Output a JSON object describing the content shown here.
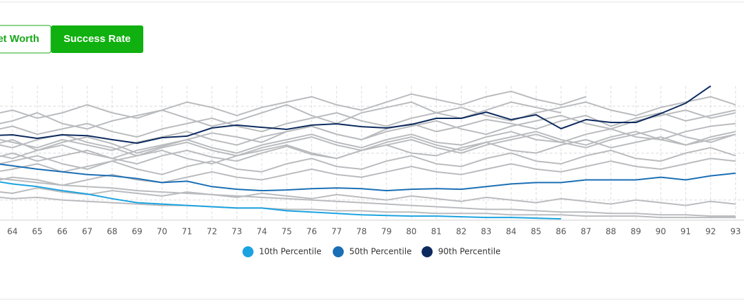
{
  "buttons": [
    "Net Worth",
    "Success Rate"
  ],
  "chart_data": {
    "type": "line",
    "categories": [
      null,
      "64",
      "65",
      "66",
      "67",
      "68",
      "69",
      "70",
      "71",
      "72",
      "73",
      "74",
      "75",
      "76",
      "77",
      "78",
      "79",
      "80",
      "81",
      "82",
      "83",
      "84",
      "85",
      "86",
      "87",
      "88",
      "89",
      "90",
      "91",
      "92",
      "93"
    ],
    "ylim": [
      0,
      100
    ],
    "yticks": [
      15,
      50,
      85
    ],
    "grid": true,
    "legend": "bottom",
    "simulations": {
      "color": "#b9bbbe",
      "values": [
        [
          55,
          60,
          52,
          58,
          62,
          57,
          50,
          55,
          60,
          65,
          62,
          58,
          66,
          70,
          64,
          60,
          68,
          72,
          66,
          70,
          75,
          72,
          68,
          74,
          78,
          70,
          76,
          80,
          74,
          78,
          82
        ],
        [
          70,
          74,
          80,
          72,
          68,
          74,
          78,
          82,
          76,
          70,
          74,
          80,
          86,
          78,
          72,
          80,
          84,
          88,
          80,
          76,
          82,
          88,
          84,
          80,
          null,
          null,
          null,
          null,
          null,
          null,
          null
        ],
        [
          45,
          50,
          44,
          48,
          52,
          46,
          42,
          48,
          52,
          47,
          44,
          50,
          55,
          49,
          46,
          52,
          56,
          50,
          48,
          54,
          58,
          52,
          50,
          56,
          60,
          54,
          58,
          62,
          56,
          60,
          64
        ],
        [
          35,
          38,
          42,
          36,
          40,
          44,
          38,
          34,
          40,
          44,
          38,
          36,
          42,
          46,
          40,
          38,
          44,
          48,
          42,
          40,
          46,
          50,
          44,
          42,
          48,
          52,
          46,
          44,
          50,
          54,
          48
        ],
        [
          62,
          58,
          54,
          60,
          56,
          52,
          58,
          62,
          66,
          60,
          56,
          62,
          66,
          70,
          64,
          60,
          66,
          70,
          74,
          68,
          64,
          70,
          74,
          78,
          72,
          68,
          74,
          78,
          82,
          76,
          80
        ],
        [
          28,
          32,
          30,
          26,
          30,
          34,
          30,
          28,
          32,
          36,
          32,
          30,
          34,
          38,
          34,
          32,
          36,
          40,
          36,
          34,
          38,
          42,
          38,
          36,
          40,
          44,
          40,
          38,
          42,
          46,
          44
        ],
        [
          50,
          46,
          52,
          56,
          50,
          46,
          52,
          56,
          60,
          54,
          50,
          56,
          60,
          64,
          58,
          54,
          60,
          64,
          58,
          56,
          62,
          66,
          60,
          58,
          64,
          68,
          62,
          60,
          66,
          70,
          72
        ],
        [
          22,
          20,
          24,
          21,
          19,
          22,
          20,
          18,
          21,
          19,
          17,
          20,
          18,
          16,
          19,
          17,
          15,
          18,
          16,
          14,
          17,
          15,
          13,
          16,
          14,
          12,
          15,
          13,
          11,
          14,
          12
        ],
        [
          78,
          82,
          76,
          80,
          86,
          80,
          76,
          82,
          88,
          84,
          78,
          84,
          88,
          92,
          86,
          82,
          88,
          94,
          90,
          86,
          92,
          96,
          90,
          86,
          92,
          null,
          null,
          null,
          null,
          null,
          null
        ],
        [
          40,
          44,
          48,
          42,
          38,
          44,
          48,
          52,
          46,
          42,
          48,
          52,
          56,
          50,
          46,
          52,
          56,
          60,
          54,
          50,
          56,
          60,
          64,
          58,
          54,
          60,
          64,
          68,
          62,
          58,
          64
        ],
        [
          32,
          30,
          28,
          26,
          25,
          24,
          22,
          21,
          20,
          19,
          18,
          17,
          16,
          15,
          14,
          13,
          12,
          11,
          10,
          9,
          8,
          8,
          7,
          6,
          6,
          5,
          5,
          4,
          4,
          3,
          3
        ],
        [
          66,
          70,
          64,
          68,
          72,
          66,
          62,
          68,
          72,
          76,
          70,
          66,
          72,
          76,
          80,
          74,
          70,
          76,
          80,
          84,
          78,
          74,
          80,
          84,
          88,
          82,
          78,
          84,
          88,
          92,
          86
        ],
        [
          18,
          16,
          17,
          15,
          14,
          13,
          12,
          11,
          11,
          10,
          9,
          9,
          8,
          8,
          7,
          7,
          6,
          6,
          5,
          5,
          5,
          4,
          4,
          4,
          3,
          3,
          3,
          2,
          2,
          2,
          2
        ],
        [
          58,
          54,
          60,
          64,
          58,
          54,
          48,
          54,
          58,
          52,
          48,
          54,
          58,
          62,
          56,
          52,
          58,
          62,
          56,
          52,
          58,
          62,
          66,
          60,
          56,
          62,
          66,
          60,
          56,
          62,
          66
        ]
      ]
    },
    "series": [
      {
        "name": "10th Percentile",
        "color": "#1aa3e0",
        "values": [
          30,
          27,
          25,
          22,
          19.5,
          16,
          13,
          12,
          11,
          10,
          9,
          9,
          7,
          6,
          5,
          4,
          3.5,
          3,
          3,
          2.5,
          2,
          2,
          1.5,
          1,
          null,
          null,
          null,
          null,
          null,
          null,
          null
        ]
      },
      {
        "name": "50th Percentile",
        "color": "#1a6eb5",
        "values": [
          43,
          40.5,
          38,
          36,
          34,
          33,
          31,
          28,
          29,
          25,
          23,
          22,
          22.5,
          23.5,
          24,
          23.5,
          22,
          23,
          23.5,
          23,
          25,
          27,
          28,
          28,
          30,
          30,
          30,
          32,
          30,
          33,
          35
        ]
      },
      {
        "name": "90th Percentile",
        "color": "#0d2a5e",
        "values": [
          63,
          63.6,
          61,
          63.6,
          63,
          60,
          57.4,
          61.5,
          62.6,
          68.7,
          70.8,
          69.2,
          67.7,
          70.8,
          71.8,
          69.7,
          68.7,
          71.3,
          75.9,
          75.9,
          80.5,
          74.9,
          78.5,
          68.2,
          74.9,
          72.8,
          72.8,
          79.5,
          87.2,
          100,
          null
        ]
      }
    ]
  }
}
